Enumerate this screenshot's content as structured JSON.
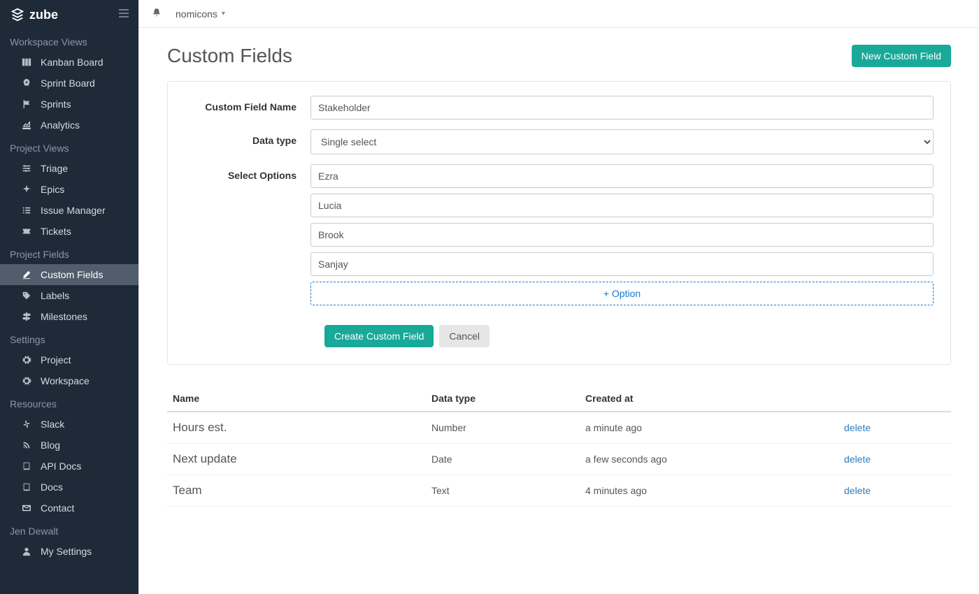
{
  "brand": "zube",
  "topbar": {
    "crumb": "nomicons"
  },
  "sidebar": {
    "sections": [
      {
        "title": "Workspace Views",
        "items": [
          {
            "label": "Kanban Board",
            "icon": "columns"
          },
          {
            "label": "Sprint Board",
            "icon": "rocket"
          },
          {
            "label": "Sprints",
            "icon": "flag"
          },
          {
            "label": "Analytics",
            "icon": "chart"
          }
        ]
      },
      {
        "title": "Project Views",
        "items": [
          {
            "label": "Triage",
            "icon": "sliders"
          },
          {
            "label": "Epics",
            "icon": "sparkle"
          },
          {
            "label": "Issue Manager",
            "icon": "list"
          },
          {
            "label": "Tickets",
            "icon": "ticket"
          }
        ]
      },
      {
        "title": "Project Fields",
        "items": [
          {
            "label": "Custom Fields",
            "icon": "edit",
            "active": true
          },
          {
            "label": "Labels",
            "icon": "tag"
          },
          {
            "label": "Milestones",
            "icon": "signpost"
          }
        ]
      },
      {
        "title": "Settings",
        "items": [
          {
            "label": "Project",
            "icon": "gear"
          },
          {
            "label": "Workspace",
            "icon": "gear"
          }
        ]
      },
      {
        "title": "Resources",
        "items": [
          {
            "label": "Slack",
            "icon": "slack"
          },
          {
            "label": "Blog",
            "icon": "rss"
          },
          {
            "label": "API Docs",
            "icon": "book"
          },
          {
            "label": "Docs",
            "icon": "book"
          },
          {
            "label": "Contact",
            "icon": "mail"
          }
        ]
      },
      {
        "title": "Jen Dewalt",
        "items": [
          {
            "label": "My Settings",
            "icon": "user"
          }
        ]
      }
    ]
  },
  "page": {
    "title": "Custom Fields",
    "new_button": "New Custom Field"
  },
  "form": {
    "labels": {
      "name": "Custom Field Name",
      "type": "Data type",
      "options": "Select Options"
    },
    "name_value": "Stakeholder",
    "type_value": "Single select",
    "options": [
      "Ezra",
      "Lucia",
      "Brook",
      "Sanjay"
    ],
    "add_option": "+ Option",
    "create": "Create Custom Field",
    "cancel": "Cancel"
  },
  "table": {
    "headers": {
      "name": "Name",
      "type": "Data type",
      "created": "Created at"
    },
    "rows": [
      {
        "name": "Hours est.",
        "type": "Number",
        "created": "a minute ago",
        "action": "delete"
      },
      {
        "name": "Next update",
        "type": "Date",
        "created": "a few seconds ago",
        "action": "delete"
      },
      {
        "name": "Team",
        "type": "Text",
        "created": "4 minutes ago",
        "action": "delete"
      }
    ]
  }
}
